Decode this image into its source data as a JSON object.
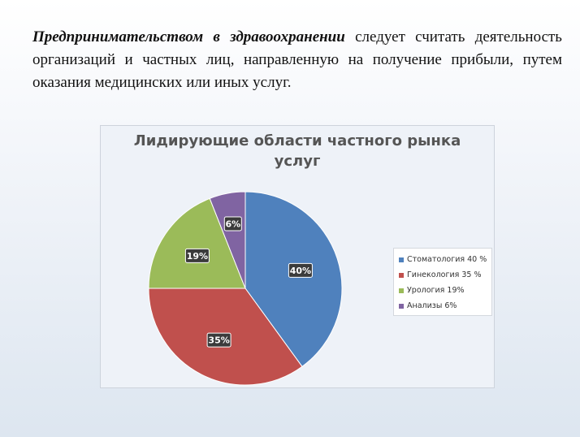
{
  "intro": {
    "lead": "Предпринимательством в здравоохранении",
    "rest": " следует считать деятельность организаций и частных лиц, направленную на получение прибыли, путем оказания медицинских или иных услуг."
  },
  "chart_data": {
    "type": "pie",
    "title_lines": [
      "Лидирующие области частного рынка",
      "услуг"
    ],
    "slices": [
      {
        "legend": "Стоматология 40 %",
        "label": "40%",
        "value": 40,
        "color": "#4f81bd"
      },
      {
        "legend": "Гинекология 35 %",
        "label": "35%",
        "value": 35,
        "color": "#c0504d"
      },
      {
        "legend": "Урология 19%",
        "label": "19%",
        "value": 19,
        "color": "#9bbb59"
      },
      {
        "legend": "Анализы 6%",
        "label": "6%",
        "value": 6,
        "color": "#8064a2"
      }
    ],
    "legend_position": "right"
  }
}
